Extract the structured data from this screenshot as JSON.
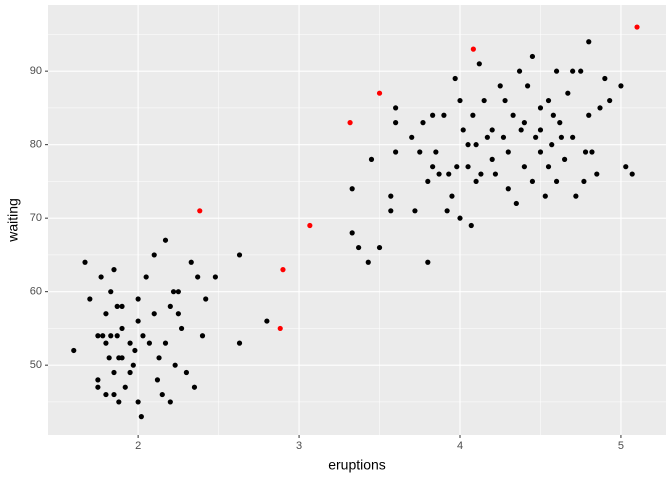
{
  "chart_data": {
    "type": "scatter",
    "x_label": "eruptions",
    "y_label": "waiting",
    "xlim": [
      1.44,
      5.28
    ],
    "ylim": [
      40.5,
      99
    ],
    "xticks": [
      2,
      3,
      4,
      5
    ],
    "yticks": [
      50,
      60,
      70,
      80,
      90
    ],
    "xminorticks": [
      2.5,
      3.5,
      4.5
    ],
    "yminorticks": [
      45,
      55,
      65,
      75,
      85,
      95
    ],
    "grid": true,
    "panel_color": "#ebebeb",
    "series": [
      {
        "color": "#000000",
        "x": [
          1.6,
          1.67,
          1.7,
          1.75,
          1.75,
          1.75,
          1.77,
          1.78,
          1.8,
          1.8,
          1.82,
          1.83,
          1.83,
          1.85,
          1.85,
          1.85,
          1.87,
          1.87,
          1.88,
          1.88,
          1.9,
          1.9,
          1.92,
          1.95,
          1.97,
          1.98,
          2.0,
          2.0,
          2.02,
          2.03,
          2.05,
          2.07,
          2.1,
          2.1,
          2.12,
          2.13,
          2.15,
          2.17,
          2.17,
          2.2,
          2.2,
          2.22,
          2.23,
          2.25,
          2.27,
          2.3,
          2.33,
          2.35,
          2.37,
          2.4,
          2.42,
          2.48,
          2.63,
          2.63,
          2.8,
          1.8,
          1.9,
          2.0,
          2.25,
          1.95,
          3.33,
          3.33,
          3.37,
          3.43,
          3.45,
          3.5,
          3.57,
          3.57,
          3.6,
          3.6,
          3.6,
          3.7,
          3.72,
          3.75,
          3.77,
          3.8,
          3.8,
          3.83,
          3.83,
          3.85,
          3.87,
          3.9,
          3.92,
          3.95,
          3.97,
          3.98,
          4.0,
          4.0,
          4.02,
          4.05,
          4.07,
          4.08,
          4.1,
          4.12,
          4.13,
          4.15,
          4.17,
          4.2,
          4.22,
          4.25,
          4.27,
          4.3,
          4.3,
          4.33,
          4.35,
          4.37,
          4.38,
          4.4,
          4.42,
          4.45,
          4.47,
          4.5,
          4.5,
          4.53,
          4.55,
          4.57,
          4.6,
          4.6,
          4.62,
          4.65,
          4.67,
          4.7,
          4.72,
          4.75,
          4.77,
          4.8,
          4.8,
          4.82,
          4.85,
          4.87,
          4.9,
          4.93,
          5.0,
          5.03,
          5.07,
          4.5,
          4.4,
          4.2,
          4.05,
          4.58,
          4.63,
          4.78,
          4.28,
          4.1,
          3.93,
          4.45,
          4.7,
          4.55
        ],
        "values": [
          52,
          64,
          59,
          54,
          47,
          48,
          62,
          54,
          46,
          57,
          51,
          54,
          60,
          63,
          49,
          46,
          54,
          58,
          45,
          51,
          55,
          58,
          47,
          53,
          50,
          52,
          56,
          59,
          43,
          54,
          62,
          53,
          57,
          65,
          48,
          51,
          46,
          53,
          67,
          58,
          45,
          60,
          50,
          57,
          55,
          49,
          64,
          47,
          62,
          54,
          59,
          62,
          53,
          65,
          56,
          53,
          51,
          45,
          60,
          49,
          74,
          68,
          66,
          64,
          78,
          66,
          73,
          71,
          79,
          85,
          83,
          81,
          71,
          79,
          83,
          64,
          75,
          77,
          84,
          79,
          76,
          84,
          71,
          73,
          89,
          77,
          86,
          70,
          82,
          77,
          69,
          84,
          80,
          91,
          76,
          86,
          81,
          78,
          76,
          88,
          81,
          74,
          79,
          84,
          72,
          90,
          82,
          77,
          88,
          75,
          81,
          85,
          79,
          73,
          86,
          80,
          90,
          75,
          83,
          78,
          87,
          81,
          73,
          90,
          75,
          94,
          84,
          79,
          76,
          85,
          89,
          86,
          88,
          77,
          76,
          82,
          83,
          82,
          80,
          84,
          81,
          79,
          86,
          75,
          76,
          92,
          90,
          77
        ]
      },
      {
        "color": "#ff0000",
        "x": [
          2.383,
          2.883,
          2.9,
          3.067,
          3.317,
          3.5,
          4.083,
          5.1
        ],
        "values": [
          71,
          55,
          63,
          69,
          83,
          87,
          93,
          96
        ]
      }
    ]
  }
}
